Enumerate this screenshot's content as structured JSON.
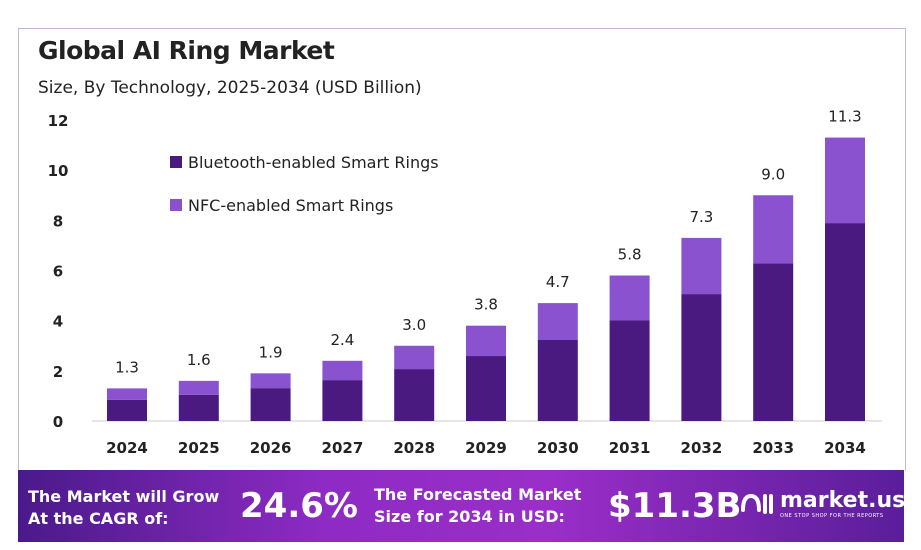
{
  "chart_data": {
    "type": "bar",
    "stacked": true,
    "title": "Global AI Ring Market",
    "subtitle": "Size, By Technology, 2025-2034 (USD Billion)",
    "categories": [
      "2024",
      "2025",
      "2026",
      "2027",
      "2028",
      "2029",
      "2030",
      "2031",
      "2032",
      "2033",
      "2034"
    ],
    "series": [
      {
        "name": "Bluetooth-enabled Smart Rings",
        "color": "#4b1a80",
        "values": [
          0.84,
          1.04,
          1.31,
          1.63,
          2.07,
          2.59,
          3.23,
          4.02,
          5.06,
          6.29,
          7.89
        ]
      },
      {
        "name": "NFC-enabled Smart Rings",
        "color": "#8a52cf",
        "values": [
          0.46,
          0.56,
          0.59,
          0.77,
          0.93,
          1.21,
          1.47,
          1.78,
          2.24,
          2.71,
          3.41
        ]
      }
    ],
    "totals": [
      "1.3",
      "1.6",
      "1.9",
      "2.4",
      "3.0",
      "3.8",
      "4.7",
      "5.8",
      "7.3",
      "9.0",
      "11.3"
    ],
    "yticks": [
      "0",
      "2",
      "4",
      "6",
      "8",
      "10",
      "12"
    ],
    "ylim": [
      0,
      12
    ],
    "grid": false,
    "legend": "top-left"
  },
  "banner": {
    "cagr_label_1": "The Market will Grow",
    "cagr_label_2": "At the CAGR of:",
    "cagr_value": "24.6%",
    "forecast_label_1": "The Forecasted Market",
    "forecast_label_2": "Size for 2034 in USD:",
    "forecast_value": "$11.3B",
    "logo_text": "market.us",
    "logo_tagline": "ONE STOP SHOP FOR THE REPORTS"
  }
}
